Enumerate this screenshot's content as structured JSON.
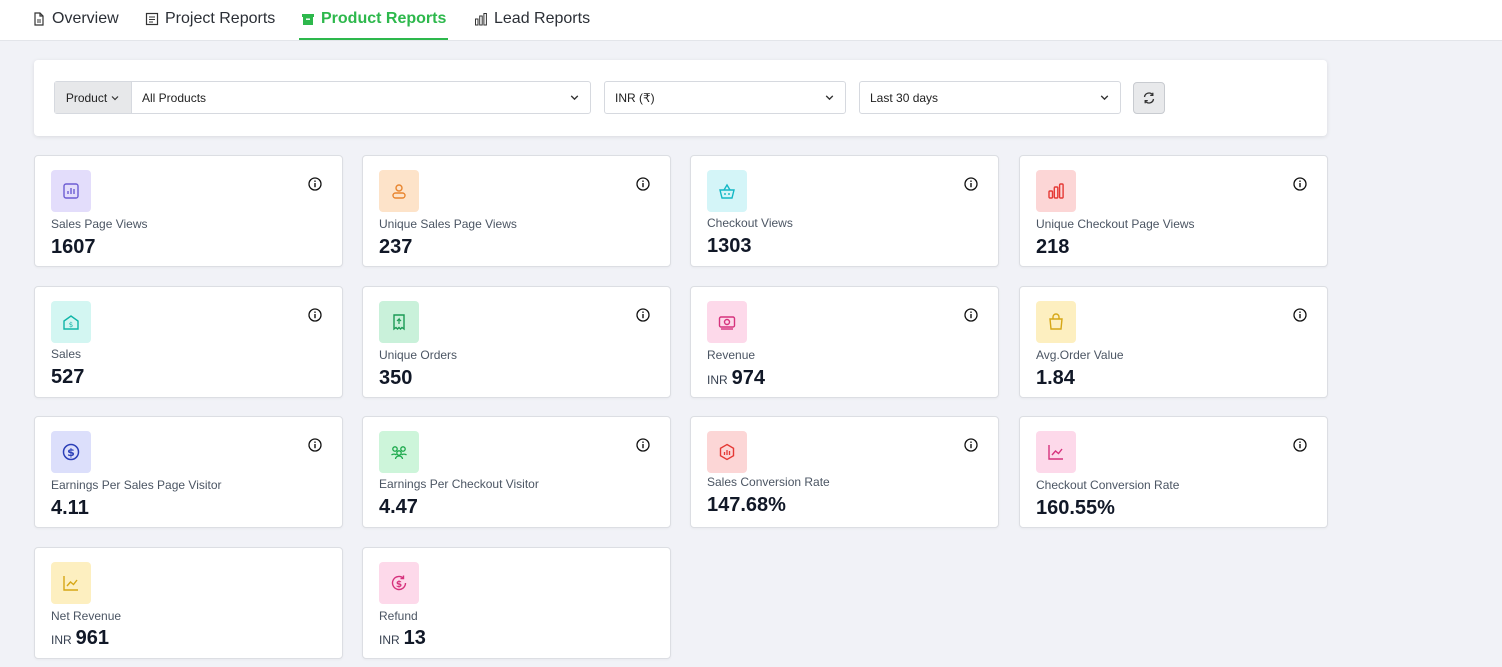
{
  "tabs": [
    {
      "label": "Overview",
      "icon": "document-icon",
      "active": false
    },
    {
      "label": "Project Reports",
      "icon": "report-icon",
      "active": false
    },
    {
      "label": "Product Reports",
      "icon": "box-icon",
      "active": true
    },
    {
      "label": "Lead Reports",
      "icon": "bar-chart-icon",
      "active": false
    }
  ],
  "filters": {
    "type_button": "Product",
    "product_select": "All Products",
    "currency_select": "INR (₹)",
    "period_select": "Last 30 days",
    "refresh_icon": "refresh-icon"
  },
  "metrics": [
    {
      "label": "Sales Page Views",
      "value": "1607",
      "currency": "",
      "icon": "bar-chart-icon",
      "color": "#6d5dd3",
      "bg": "#e3ddfb"
    },
    {
      "label": "Unique Sales Page Views",
      "value": "237",
      "currency": "",
      "icon": "user-icon",
      "color": "#e8852f",
      "bg": "#fde3c9"
    },
    {
      "label": "Checkout Views",
      "value": "1303",
      "currency": "",
      "icon": "basket-icon",
      "color": "#14b8c6",
      "bg": "#d4f5f8"
    },
    {
      "label": "Unique Checkout Page Views",
      "value": "218",
      "currency": "",
      "icon": "bars-icon",
      "color": "#e53935",
      "bg": "#fcd6d6"
    },
    {
      "label": "Sales",
      "value": "527",
      "currency": "",
      "icon": "dollar-house-icon",
      "color": "#0fb5a7",
      "bg": "#d3f6f2"
    },
    {
      "label": "Unique Orders",
      "value": "350",
      "currency": "",
      "icon": "receipt-icon",
      "color": "#1a9a54",
      "bg": "#c9f1da"
    },
    {
      "label": "Revenue",
      "value": "974",
      "currency": "INR",
      "icon": "cash-icon",
      "color": "#d6327d",
      "bg": "#fdd9ea"
    },
    {
      "label": "Avg.Order Value",
      "value": "1.84",
      "currency": "",
      "icon": "shopping-bag-icon",
      "color": "#d6a716",
      "bg": "#fdefc0"
    },
    {
      "label": "Earnings Per Sales Page Visitor",
      "value": "4.11",
      "currency": "",
      "icon": "dollar-coin-icon",
      "color": "#2b3fb8",
      "bg": "#dcdffb"
    },
    {
      "label": "Earnings Per Checkout Visitor",
      "value": "4.47",
      "currency": "",
      "icon": "users-icon",
      "color": "#1aa84a",
      "bg": "#cdf5da"
    },
    {
      "label": "Sales Conversion Rate",
      "value": "147.68%",
      "currency": "",
      "icon": "hexagon-chart-icon",
      "color": "#e53935",
      "bg": "#fcd6d6"
    },
    {
      "label": "Checkout Conversion Rate",
      "value": "160.55%",
      "currency": "",
      "icon": "line-chart-icon",
      "color": "#d6327d",
      "bg": "#fdd9ea"
    },
    {
      "label": "Net Revenue",
      "value": "961",
      "currency": "INR",
      "icon": "line-chart-icon",
      "color": "#d6a716",
      "bg": "#fdefc0"
    },
    {
      "label": "Refund",
      "value": "13",
      "currency": "INR",
      "icon": "refund-icon",
      "color": "#d6327d",
      "bg": "#fdd9ea"
    }
  ]
}
